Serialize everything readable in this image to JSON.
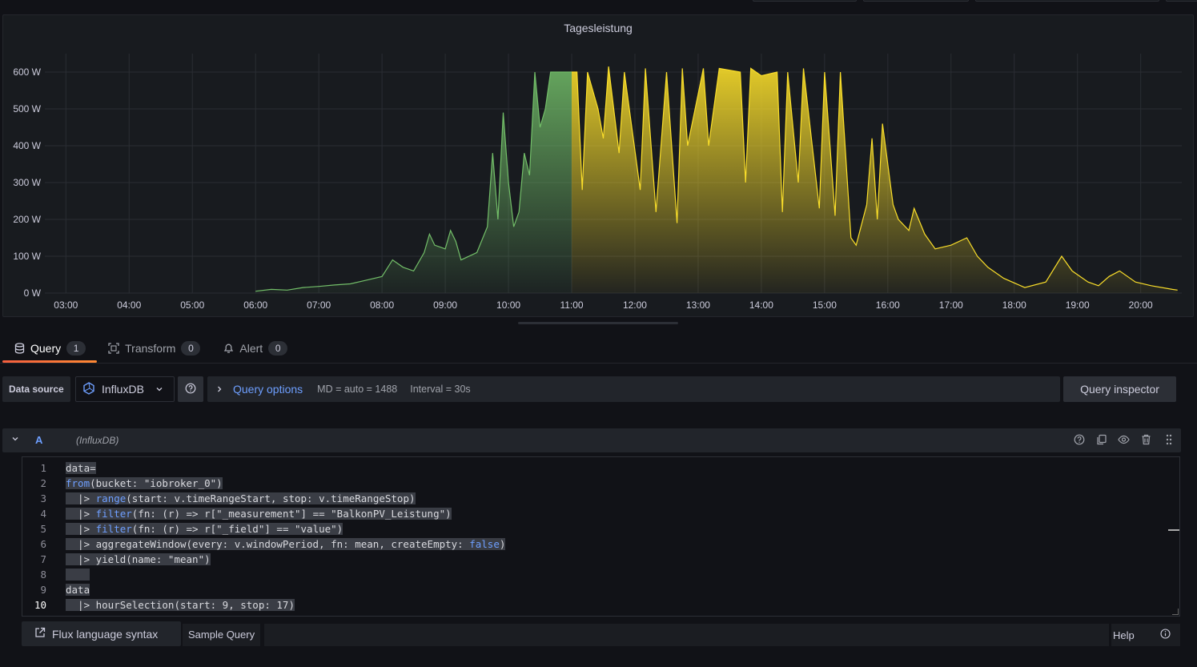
{
  "panel": {
    "title": "Tagesleistung"
  },
  "chart_data": {
    "type": "area",
    "y_unit": "W",
    "ylim": [
      0,
      650
    ],
    "y_ticks": [
      "0 W",
      "100 W",
      "200 W",
      "300 W",
      "400 W",
      "500 W",
      "600 W"
    ],
    "x_ticks": [
      "03:00",
      "04:00",
      "05:00",
      "06:00",
      "07:00",
      "08:00",
      "09:00",
      "10:00",
      "11:00",
      "12:00",
      "13:00",
      "14:00",
      "15:00",
      "16:00",
      "17:00",
      "18:00",
      "19:00",
      "20:00"
    ],
    "grid": true,
    "series": [
      {
        "color_before": "#73bf69",
        "color_after": "#fade2a",
        "threshold_time": "11:00",
        "points": [
          [
            "06:00",
            5
          ],
          [
            "06:15",
            10
          ],
          [
            "06:30",
            8
          ],
          [
            "06:45",
            15
          ],
          [
            "07:00",
            18
          ],
          [
            "07:15",
            22
          ],
          [
            "07:30",
            25
          ],
          [
            "07:45",
            35
          ],
          [
            "08:00",
            45
          ],
          [
            "08:10",
            90
          ],
          [
            "08:20",
            70
          ],
          [
            "08:30",
            60
          ],
          [
            "08:40",
            110
          ],
          [
            "08:45",
            160
          ],
          [
            "08:50",
            130
          ],
          [
            "09:00",
            120
          ],
          [
            "09:05",
            170
          ],
          [
            "09:10",
            140
          ],
          [
            "09:15",
            90
          ],
          [
            "09:30",
            110
          ],
          [
            "09:40",
            180
          ],
          [
            "09:45",
            380
          ],
          [
            "09:50",
            200
          ],
          [
            "09:55",
            490
          ],
          [
            "10:00",
            300
          ],
          [
            "10:05",
            180
          ],
          [
            "10:10",
            220
          ],
          [
            "10:15",
            380
          ],
          [
            "10:20",
            320
          ],
          [
            "10:25",
            600
          ],
          [
            "10:30",
            450
          ],
          [
            "10:35",
            500
          ],
          [
            "10:40",
            600
          ],
          [
            "10:50",
            600
          ],
          [
            "11:00",
            600
          ],
          [
            "11:05",
            600
          ],
          [
            "11:10",
            280
          ],
          [
            "11:15",
            600
          ],
          [
            "11:25",
            500
          ],
          [
            "11:30",
            420
          ],
          [
            "11:35",
            615
          ],
          [
            "11:45",
            380
          ],
          [
            "11:50",
            600
          ],
          [
            "12:05",
            280
          ],
          [
            "12:10",
            610
          ],
          [
            "12:20",
            220
          ],
          [
            "12:30",
            600
          ],
          [
            "12:40",
            190
          ],
          [
            "12:45",
            610
          ],
          [
            "12:50",
            400
          ],
          [
            "13:05",
            610
          ],
          [
            "13:10",
            400
          ],
          [
            "13:20",
            610
          ],
          [
            "13:40",
            600
          ],
          [
            "13:45",
            300
          ],
          [
            "13:50",
            610
          ],
          [
            "14:00",
            590
          ],
          [
            "14:15",
            600
          ],
          [
            "14:20",
            220
          ],
          [
            "14:25",
            600
          ],
          [
            "14:35",
            300
          ],
          [
            "14:40",
            610
          ],
          [
            "14:55",
            230
          ],
          [
            "15:00",
            600
          ],
          [
            "15:10",
            210
          ],
          [
            "15:15",
            600
          ],
          [
            "15:25",
            150
          ],
          [
            "15:30",
            130
          ],
          [
            "15:40",
            240
          ],
          [
            "15:45",
            420
          ],
          [
            "15:50",
            200
          ],
          [
            "15:55",
            460
          ],
          [
            "16:05",
            240
          ],
          [
            "16:10",
            200
          ],
          [
            "16:20",
            170
          ],
          [
            "16:25",
            230
          ],
          [
            "16:35",
            160
          ],
          [
            "16:45",
            120
          ],
          [
            "17:00",
            130
          ],
          [
            "17:15",
            150
          ],
          [
            "17:25",
            100
          ],
          [
            "17:35",
            70
          ],
          [
            "17:50",
            40
          ],
          [
            "18:10",
            15
          ],
          [
            "18:30",
            30
          ],
          [
            "18:45",
            100
          ],
          [
            "18:55",
            60
          ],
          [
            "19:10",
            30
          ],
          [
            "19:20",
            20
          ],
          [
            "19:30",
            45
          ],
          [
            "19:40",
            60
          ],
          [
            "19:55",
            30
          ],
          [
            "20:10",
            20
          ],
          [
            "20:30",
            10
          ],
          [
            "20:35",
            8
          ]
        ]
      }
    ]
  },
  "tabs": [
    {
      "label": "Query",
      "count": "1",
      "icon": "database-icon"
    },
    {
      "label": "Transform",
      "count": "0",
      "icon": "transform-icon"
    },
    {
      "label": "Alert",
      "count": "0",
      "icon": "bell-icon"
    }
  ],
  "datasource": {
    "label": "Data source",
    "selected": "InfluxDB",
    "query_options_label": "Query options",
    "md": "MD = auto = 1488",
    "interval": "Interval = 30s",
    "inspector_label": "Query inspector"
  },
  "query_row": {
    "ref_id": "A",
    "datasource_name": "(InfluxDB)"
  },
  "editor": {
    "current_line": 10,
    "lines": [
      "data=",
      "from(bucket: \"iobroker_0\")",
      "  |> range(start: v.timeRangeStart, stop: v.timeRangeStop)",
      "  |> filter(fn: (r) => r[\"_measurement\"] == \"BalkonPV_Leistung\")",
      "  |> filter(fn: (r) => r[\"_field\"] == \"value\")",
      "  |> aggregateWindow(every: v.windowPeriod, fn: mean, createEmpty: false)",
      "  |> yield(name: \"mean\")",
      "",
      "data",
      "  |> hourSelection(start: 9, stop: 17)"
    ]
  },
  "footer": {
    "flux_syntax_label": "Flux language syntax",
    "sample_query_label": "Sample Query",
    "help_label": "Help"
  }
}
